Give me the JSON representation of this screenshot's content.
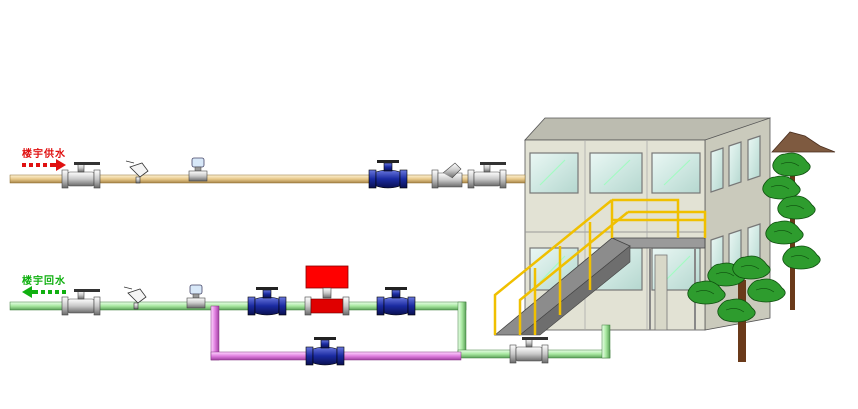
{
  "labels": {
    "supply": "楼宇供水",
    "return": "楼宇回水"
  },
  "colors": {
    "supply_pipe": "#e8c98a",
    "supply_label": "#e01010",
    "return_pipe": "#a8e8a0",
    "return_label": "#10b010",
    "bypass_pipe": "#e080e0",
    "valve_blue": "#1a2aa0",
    "actuator_red": "#ff0000",
    "building_wall": "#e2e2d4",
    "window_glass": "#cfe8e2",
    "stair_rail": "#f0c000"
  },
  "icons": {
    "supply_arrow": "arrow-right-icon",
    "return_arrow": "arrow-left-icon"
  }
}
